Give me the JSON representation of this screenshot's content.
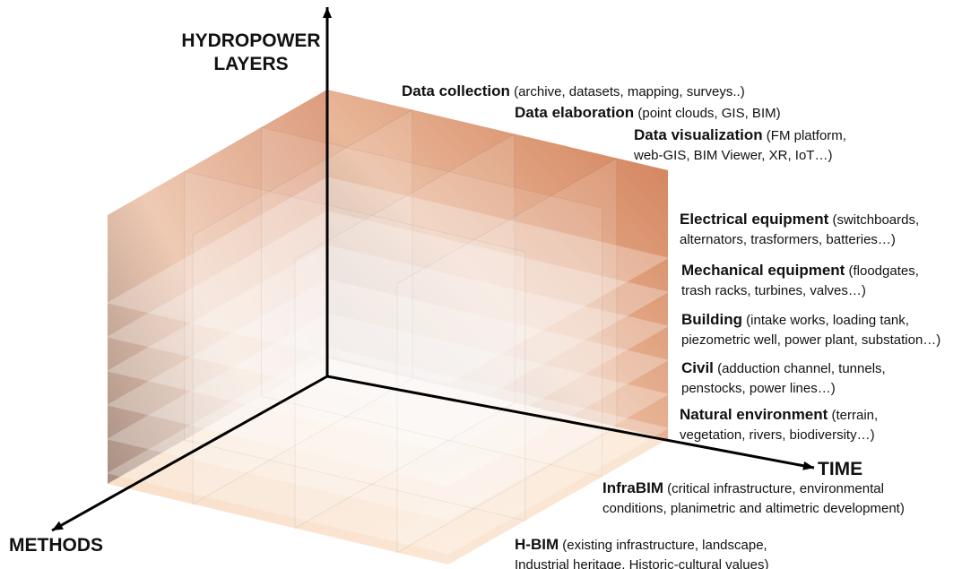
{
  "axes": {
    "layers": [
      "HYDROPOWER",
      "LAYERS"
    ],
    "time": "TIME",
    "methods": "METHODS"
  },
  "labels": [
    {
      "title": "Data collection",
      "text": [
        "(archive, datasets, mapping, surveys..)"
      ]
    },
    {
      "title": "Data elaboration",
      "text": [
        "(point clouds, GIS, BIM)"
      ]
    },
    {
      "title": "Data visualization",
      "text": [
        "(FM platform,",
        "web-GIS, BIM Viewer,  XR, IoT…)"
      ]
    },
    {
      "title": "Electrical equipment",
      "text": [
        "(switchboards,",
        "alternators, trasformers, batteries…)"
      ]
    },
    {
      "title": "Mechanical equipment",
      "text": [
        "(floodgates,",
        "trash racks, turbines, valves…)"
      ]
    },
    {
      "title": "Building",
      "text": [
        "(intake works, loading tank,",
        "piezometric well, power plant, substation…)"
      ]
    },
    {
      "title": "Civil",
      "text": [
        "(adduction channel, tunnels,",
        "penstocks, power lines…)"
      ]
    },
    {
      "title": "Natural environment",
      "text": [
        "(terrain,",
        "vegetation, rivers, biodiversity…)"
      ]
    },
    {
      "title": "InfraBIM",
      "text": [
        "(critical infrastructure, environmental",
        "conditions, planimetric and altimetric development)"
      ]
    },
    {
      "title": "H-BIM",
      "text": [
        "(existing infrastructure, landscape,",
        "Industrial heritage, Historic-cultural values)"
      ]
    }
  ]
}
